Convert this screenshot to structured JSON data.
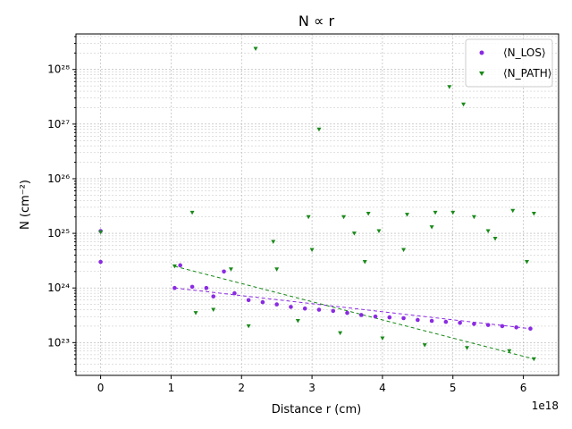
{
  "chart_data": {
    "type": "scatter",
    "title": "N ∝ r",
    "xlabel": "Distance r (cm)",
    "ylabel": "N (cm⁻²)",
    "x_offset_label": "1e18",
    "x_scale_factor": 1e+18,
    "xlim": [
      -0.35,
      6.5
    ],
    "ylim_log10": [
      22.4,
      28.65
    ],
    "yscale": "log",
    "grid": true,
    "legend_position": "upper-right",
    "x_ticks": [
      0,
      1,
      2,
      3,
      4,
      5,
      6
    ],
    "y_ticks_log10": [
      23,
      24,
      25,
      26,
      27,
      28
    ],
    "y_tick_labels": [
      "10²³",
      "10²⁴",
      "10²⁵",
      "10²⁶",
      "10²⁷",
      "10²⁸"
    ],
    "series": [
      {
        "name": "⟨N_LOS⟩",
        "marker": "circle",
        "color": "#8a2be2",
        "points": [
          [
            0.0,
            3e+24
          ],
          [
            0.0,
            1.1e+25
          ],
          [
            1.05,
            1e+24
          ],
          [
            1.13,
            2.6e+24
          ],
          [
            1.3,
            1.05e+24
          ],
          [
            1.5,
            1e+24
          ],
          [
            1.6,
            7e+23
          ],
          [
            1.75,
            2e+24
          ],
          [
            1.9,
            8e+23
          ],
          [
            2.1,
            6e+23
          ],
          [
            2.3,
            5.5e+23
          ],
          [
            2.5,
            5e+23
          ],
          [
            2.7,
            4.5e+23
          ],
          [
            2.9,
            4.2e+23
          ],
          [
            3.1,
            4e+23
          ],
          [
            3.3,
            3.8e+23
          ],
          [
            3.5,
            3.5e+23
          ],
          [
            3.7,
            3.2e+23
          ],
          [
            3.9,
            3e+23
          ],
          [
            4.1,
            2.9e+23
          ],
          [
            4.3,
            2.8e+23
          ],
          [
            4.5,
            2.6e+23
          ],
          [
            4.7,
            2.5e+23
          ],
          [
            4.9,
            2.4e+23
          ],
          [
            5.1,
            2.3e+23
          ],
          [
            5.3,
            2.2e+23
          ],
          [
            5.5,
            2.1e+23
          ],
          [
            5.7,
            2e+23
          ],
          [
            5.9,
            1.9e+23
          ],
          [
            6.1,
            1.8e+23
          ]
        ]
      },
      {
        "name": "⟨N_PATH⟩",
        "marker": "triangle-down",
        "color": "#1a8a1a",
        "points": [
          [
            0.0,
            1.05e+25
          ],
          [
            2.2,
            2.4e+28
          ],
          [
            3.1,
            8e+26
          ],
          [
            4.95,
            4.8e+27
          ],
          [
            5.15,
            2.3e+27
          ],
          [
            1.3,
            2.4e+25
          ],
          [
            2.45,
            7e+24
          ],
          [
            2.95,
            2e+25
          ],
          [
            3.45,
            2e+25
          ],
          [
            3.8,
            2.3e+25
          ],
          [
            4.35,
            2.2e+25
          ],
          [
            4.75,
            2.4e+25
          ],
          [
            5.0,
            2.4e+25
          ],
          [
            5.3,
            2e+25
          ],
          [
            5.85,
            2.6e+25
          ],
          [
            6.15,
            2.3e+25
          ],
          [
            5.5,
            1.1e+25
          ],
          [
            4.7,
            1.3e+25
          ],
          [
            3.6,
            1e+25
          ],
          [
            3.95,
            1.1e+25
          ],
          [
            1.05,
            2.5e+24
          ],
          [
            1.35,
            3.5e+23
          ],
          [
            1.6,
            4e+23
          ],
          [
            1.85,
            2.2e+24
          ],
          [
            2.5,
            2.2e+24
          ],
          [
            3.0,
            5e+24
          ],
          [
            3.75,
            3e+24
          ],
          [
            4.3,
            5e+24
          ],
          [
            5.6,
            8e+24
          ],
          [
            6.05,
            3e+24
          ],
          [
            2.1,
            2e+23
          ],
          [
            2.8,
            2.5e+23
          ],
          [
            3.4,
            1.5e+23
          ],
          [
            4.0,
            1.2e+23
          ],
          [
            4.6,
            9e+22
          ],
          [
            5.2,
            8e+22
          ],
          [
            5.8,
            7e+22
          ],
          [
            6.15,
            5e+22
          ]
        ]
      }
    ]
  }
}
